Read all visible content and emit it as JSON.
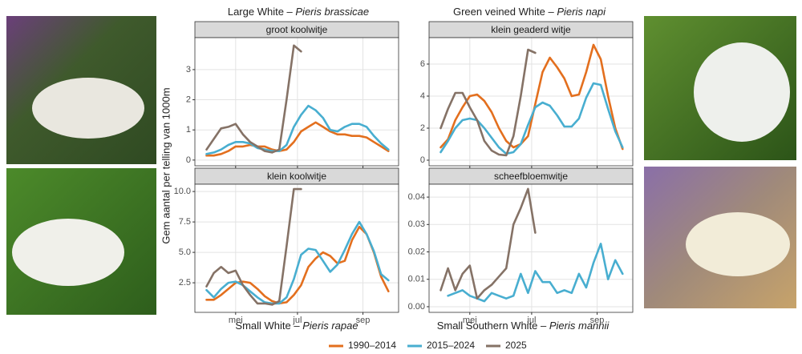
{
  "panel_titles": [
    {
      "common": "Large White – ",
      "latin": "Pieris brassicae"
    },
    {
      "common": "Green veined White – ",
      "latin": "Pieris napi"
    },
    {
      "common": "Small White – ",
      "latin": "Pieris rapae"
    },
    {
      "common": "Small Southern White – ",
      "latin": "Pieris mannii"
    }
  ],
  "ylabel": "Gem aantal per telling van 1000m",
  "chart_data": [
    {
      "type": "line",
      "title": "groot koolwitje",
      "x": [
        14,
        15,
        16,
        17,
        18,
        19,
        20,
        21,
        22,
        23,
        24,
        25,
        26,
        27,
        28,
        29,
        30,
        31,
        32,
        33,
        34,
        35,
        36,
        37,
        38,
        39
      ],
      "xlim": [
        12.4,
        40.4
      ],
      "xticks": [
        {
          "value": 18,
          "label": "mei"
        },
        {
          "value": 26.5,
          "label": "jul"
        },
        {
          "value": 35.5,
          "label": "sep"
        }
      ],
      "ylim": [
        -0.19,
        4.06
      ],
      "yticks": [
        0,
        1,
        2,
        3
      ],
      "grid": true,
      "series": [
        {
          "name": "1990–2014",
          "color": "#e36f1e",
          "values": [
            0.15,
            0.15,
            0.2,
            0.3,
            0.45,
            0.45,
            0.5,
            0.45,
            0.45,
            0.35,
            0.3,
            0.35,
            0.6,
            0.95,
            1.1,
            1.25,
            1.1,
            0.95,
            0.85,
            0.85,
            0.8,
            0.8,
            0.75,
            0.6,
            0.45,
            0.3
          ]
        },
        {
          "name": "2015–2024",
          "color": "#48aed0",
          "values": [
            0.2,
            0.25,
            0.35,
            0.5,
            0.6,
            0.6,
            0.55,
            0.4,
            0.35,
            0.3,
            0.3,
            0.5,
            1.1,
            1.5,
            1.8,
            1.65,
            1.4,
            1.0,
            0.95,
            1.1,
            1.2,
            1.2,
            1.1,
            0.8,
            0.55,
            0.35
          ]
        },
        {
          "name": "2025",
          "color": "#857266",
          "values": [
            0.35,
            0.7,
            1.05,
            1.1,
            1.2,
            0.85,
            0.6,
            0.45,
            0.3,
            0.25,
            0.35,
            2.0,
            3.8,
            3.6,
            null,
            null,
            null,
            null,
            null,
            null,
            null,
            null,
            null,
            null,
            null,
            null
          ]
        }
      ]
    },
    {
      "type": "line",
      "title": "klein geaderd witje",
      "x": [
        14,
        15,
        16,
        17,
        18,
        19,
        20,
        21,
        22,
        23,
        24,
        25,
        26,
        27,
        28,
        29,
        30,
        31,
        32,
        33,
        34,
        35,
        36,
        37,
        38,
        39
      ],
      "xlim": [
        12.4,
        40.4
      ],
      "xticks": [
        {
          "value": 18,
          "label": "mei"
        },
        {
          "value": 26.5,
          "label": "jul"
        },
        {
          "value": 35.5,
          "label": "sep"
        }
      ],
      "ylim": [
        -0.35,
        7.65
      ],
      "yticks": [
        0,
        2,
        4,
        6
      ],
      "grid": true,
      "series": [
        {
          "name": "1990–2014",
          "color": "#e36f1e",
          "values": [
            0.8,
            1.3,
            2.5,
            3.3,
            4.0,
            4.1,
            3.7,
            3.0,
            2.0,
            1.2,
            0.8,
            1.0,
            1.5,
            3.5,
            5.5,
            6.4,
            5.8,
            5.1,
            4.0,
            4.1,
            5.5,
            7.2,
            6.3,
            4.0,
            2.0,
            0.7
          ]
        },
        {
          "name": "2015–2024",
          "color": "#48aed0",
          "values": [
            0.5,
            1.2,
            2.0,
            2.5,
            2.6,
            2.5,
            2.0,
            1.4,
            0.8,
            0.4,
            0.5,
            1.0,
            2.2,
            3.3,
            3.6,
            3.4,
            2.8,
            2.1,
            2.1,
            2.6,
            3.9,
            4.8,
            4.7,
            3.2,
            1.8,
            0.8
          ]
        },
        {
          "name": "2025",
          "color": "#857266",
          "values": [
            2.0,
            3.2,
            4.2,
            4.2,
            3.3,
            2.5,
            1.2,
            0.6,
            0.35,
            0.3,
            1.5,
            4.0,
            6.9,
            6.7,
            null,
            null,
            null,
            null,
            null,
            null,
            null,
            null,
            null,
            null,
            null,
            null
          ]
        }
      ]
    },
    {
      "type": "line",
      "title": "klein koolwitje",
      "x": [
        14,
        15,
        16,
        17,
        18,
        19,
        20,
        21,
        22,
        23,
        24,
        25,
        26,
        27,
        28,
        29,
        30,
        31,
        32,
        33,
        34,
        35,
        36,
        37,
        38,
        39
      ],
      "xlim": [
        12.4,
        40.4
      ],
      "xticks": [
        {
          "value": 18,
          "label": "mei"
        },
        {
          "value": 26.5,
          "label": "jul"
        },
        {
          "value": 35.5,
          "label": "sep"
        }
      ],
      "ylim": [
        0.07,
        10.6
      ],
      "yticks": [
        2.5,
        {
          "value": 5,
          "label": "5.0"
        },
        7.5,
        {
          "value": 10,
          "label": "10.0"
        }
      ],
      "grid": true,
      "series": [
        {
          "name": "1990–2014",
          "color": "#e36f1e",
          "values": [
            1.1,
            1.1,
            1.5,
            2.0,
            2.5,
            2.6,
            2.5,
            2.0,
            1.4,
            1.0,
            0.8,
            0.9,
            1.5,
            2.3,
            3.8,
            4.5,
            5.0,
            4.7,
            4.1,
            4.3,
            6.0,
            7.1,
            6.5,
            5.0,
            3.0,
            1.8
          ]
        },
        {
          "name": "2015–2024",
          "color": "#48aed0",
          "values": [
            1.9,
            1.3,
            2.0,
            2.5,
            2.6,
            2.3,
            1.8,
            1.3,
            0.9,
            0.8,
            0.8,
            1.3,
            2.8,
            4.8,
            5.3,
            5.2,
            4.3,
            3.4,
            4.0,
            5.2,
            6.5,
            7.5,
            6.5,
            5.1,
            3.2,
            2.7
          ]
        },
        {
          "name": "2025",
          "color": "#857266",
          "values": [
            2.2,
            3.3,
            3.8,
            3.3,
            3.5,
            2.3,
            1.5,
            0.8,
            0.8,
            0.7,
            1.0,
            5.5,
            10.2,
            10.2,
            null,
            null,
            null,
            null,
            null,
            null,
            null,
            null,
            null,
            null,
            null,
            null
          ]
        }
      ]
    },
    {
      "type": "line",
      "title": "scheefbloemwitje",
      "x": [
        14,
        15,
        16,
        17,
        18,
        19,
        20,
        21,
        22,
        23,
        24,
        25,
        26,
        27,
        28,
        29,
        30,
        31,
        32,
        33,
        34,
        35,
        36,
        37,
        38,
        39
      ],
      "xlim": [
        12.4,
        40.4
      ],
      "xticks": [
        {
          "value": 18,
          "label": "mei"
        },
        {
          "value": 26.5,
          "label": "jul"
        },
        {
          "value": 35.5,
          "label": "sep"
        }
      ],
      "ylim": [
        -0.00206,
        0.0447
      ],
      "yticks": [
        {
          "value": 0,
          "label": "0.00"
        },
        0.01,
        0.02,
        0.03,
        0.04
      ],
      "grid": true,
      "series": [
        {
          "name": "2015–2024",
          "color": "#48aed0",
          "values": [
            null,
            0.004,
            0.005,
            0.006,
            0.004,
            0.003,
            0.002,
            0.005,
            0.004,
            0.003,
            0.004,
            0.012,
            0.005,
            0.013,
            0.009,
            0.009,
            0.005,
            0.006,
            0.005,
            0.012,
            0.007,
            0.016,
            0.023,
            0.01,
            0.017,
            0.012
          ]
        },
        {
          "name": "2025",
          "color": "#857266",
          "values": [
            0.006,
            0.014,
            0.006,
            0.012,
            0.015,
            0.003,
            0.006,
            0.008,
            0.011,
            0.014,
            0.03,
            0.036,
            0.043,
            0.027,
            null,
            null,
            null,
            null,
            null,
            null,
            null,
            null,
            null,
            null,
            null,
            null
          ]
        }
      ]
    }
  ]
}
